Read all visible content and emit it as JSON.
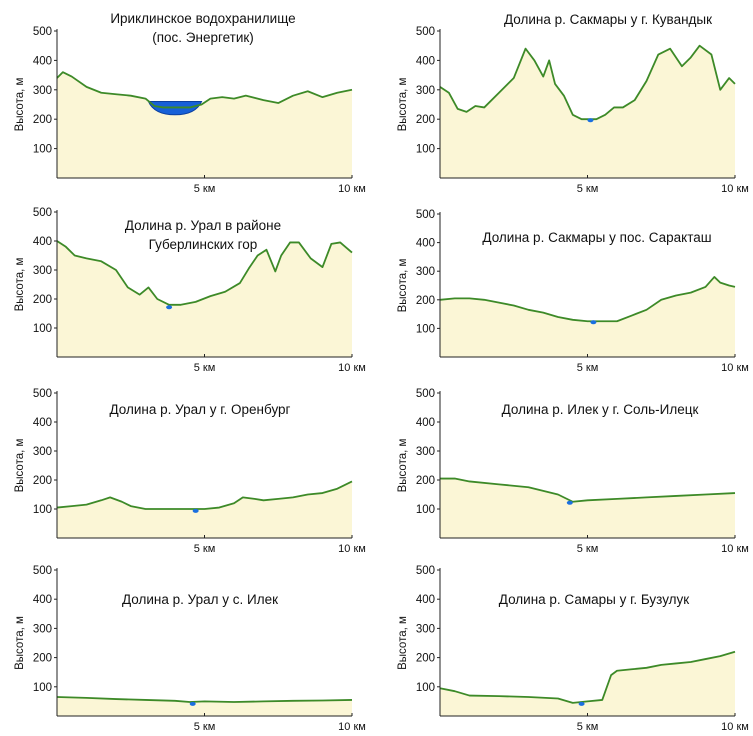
{
  "chart_data": [
    {
      "type": "area",
      "title": [
        "Ириклинское водохранилище",
        "(пос. Энергетик)"
      ],
      "ylabel": "Высота, м",
      "yticks": [
        "100",
        "200",
        "300",
        "400",
        "500"
      ],
      "xticks": [
        {
          "x": 5,
          "label": "5 км"
        },
        {
          "x": 10,
          "label": "10 км"
        }
      ],
      "xlim": [
        0,
        10
      ],
      "ylim": [
        0,
        500
      ],
      "x": [
        0,
        0.2,
        0.5,
        1,
        1.5,
        2,
        2.5,
        3,
        3.3,
        3.6,
        4,
        4.5,
        4.9,
        5.2,
        5.6,
        6,
        6.4,
        7,
        7.5,
        8,
        8.5,
        9,
        9.5,
        10
      ],
      "y": [
        340,
        360,
        345,
        310,
        290,
        285,
        280,
        270,
        245,
        240,
        240,
        240,
        250,
        270,
        275,
        270,
        280,
        265,
        255,
        280,
        295,
        275,
        290,
        300
      ],
      "water": {
        "x": [
          3.1,
          4.9
        ],
        "level": 260,
        "depth": 215
      }
    },
    {
      "type": "area",
      "title": [
        "Долина р. Сакмары у г. Кувандык"
      ],
      "ylabel": "Высота, м",
      "yticks": [
        "100",
        "200",
        "300",
        "400",
        "500"
      ],
      "xticks": [
        {
          "x": 5,
          "label": "5 км"
        },
        {
          "x": 10,
          "label": "10 км"
        }
      ],
      "xlim": [
        0,
        10
      ],
      "ylim": [
        0,
        500
      ],
      "x": [
        0,
        0.3,
        0.6,
        0.9,
        1.2,
        1.5,
        2,
        2.5,
        2.9,
        3.2,
        3.5,
        3.7,
        3.9,
        4.2,
        4.5,
        4.8,
        5,
        5.3,
        5.6,
        5.9,
        6.2,
        6.6,
        7,
        7.4,
        7.8,
        8.2,
        8.5,
        8.8,
        9.2,
        9.5,
        9.8,
        10
      ],
      "y": [
        310,
        290,
        235,
        225,
        245,
        240,
        290,
        340,
        440,
        400,
        345,
        400,
        320,
        280,
        215,
        200,
        200,
        200,
        215,
        240,
        240,
        265,
        330,
        420,
        440,
        380,
        410,
        450,
        420,
        300,
        340,
        320
      ],
      "marker": {
        "x": 5.1,
        "y": 200
      }
    },
    {
      "type": "area",
      "title": [
        "Долина р. Урал в районе",
        "Губерлинских гор"
      ],
      "ylabel": "Высота, м",
      "yticks": [
        "100",
        "200",
        "300",
        "400",
        "500"
      ],
      "xticks": [
        {
          "x": 5,
          "label": "5 км"
        },
        {
          "x": 10,
          "label": "10 км"
        }
      ],
      "xlim": [
        0,
        10
      ],
      "ylim": [
        0,
        500
      ],
      "x": [
        0,
        0.3,
        0.6,
        1,
        1.5,
        2,
        2.4,
        2.8,
        3.1,
        3.4,
        3.8,
        4.2,
        4.7,
        5.2,
        5.7,
        6.2,
        6.5,
        6.8,
        7.1,
        7.4,
        7.6,
        7.9,
        8.2,
        8.6,
        9,
        9.3,
        9.6,
        10
      ],
      "y": [
        400,
        380,
        350,
        340,
        330,
        300,
        240,
        215,
        240,
        200,
        180,
        180,
        190,
        210,
        225,
        255,
        305,
        350,
        370,
        295,
        350,
        395,
        395,
        340,
        310,
        390,
        395,
        360
      ],
      "marker": {
        "x": 3.8,
        "y": 175
      }
    },
    {
      "type": "area",
      "title": [
        "Долина р. Сакмары у пос. Саракташ"
      ],
      "ylabel": "Высота, м",
      "yticks": [
        "100",
        "200",
        "300",
        "400",
        "500"
      ],
      "xticks": [
        {
          "x": 5,
          "label": "5 км"
        },
        {
          "x": 10,
          "label": "10 км"
        }
      ],
      "xlim": [
        0,
        10
      ],
      "ylim": [
        0,
        500
      ],
      "x": [
        0,
        0.5,
        1,
        1.5,
        2,
        2.5,
        3,
        3.5,
        4,
        4.5,
        5,
        5.5,
        6,
        6.5,
        7,
        7.5,
        8,
        8.5,
        9,
        9.3,
        9.5,
        9.8,
        10
      ],
      "y": [
        200,
        205,
        205,
        200,
        190,
        180,
        165,
        155,
        140,
        130,
        125,
        125,
        125,
        145,
        165,
        200,
        215,
        225,
        245,
        280,
        260,
        250,
        245
      ],
      "marker": {
        "x": 5.2,
        "y": 125
      }
    },
    {
      "type": "area",
      "title": [
        "Долина р. Урал у г. Оренбург"
      ],
      "ylabel": "Высота, м",
      "yticks": [
        "100",
        "200",
        "300",
        "400",
        "500"
      ],
      "xticks": [
        {
          "x": 5,
          "label": "5 км"
        },
        {
          "x": 10,
          "label": "10 км"
        }
      ],
      "xlim": [
        0,
        10
      ],
      "ylim": [
        0,
        500
      ],
      "x": [
        0,
        0.5,
        1,
        1.5,
        1.8,
        2.2,
        2.5,
        3,
        3.5,
        4,
        4.5,
        5,
        5.5,
        6,
        6.3,
        6.7,
        7,
        7.5,
        8,
        8.5,
        9,
        9.5,
        10
      ],
      "y": [
        105,
        110,
        115,
        130,
        140,
        125,
        110,
        100,
        100,
        100,
        100,
        100,
        105,
        120,
        140,
        135,
        130,
        135,
        140,
        150,
        155,
        170,
        195
      ],
      "marker": {
        "x": 4.7,
        "y": 97
      }
    },
    {
      "type": "area",
      "title": [
        "Долина р. Илек у  г. Соль-Илецк"
      ],
      "ylabel": "Высота, м",
      "yticks": [
        "100",
        "200",
        "300",
        "400",
        "500"
      ],
      "xticks": [
        {
          "x": 5,
          "label": "5 км"
        },
        {
          "x": 10,
          "label": "10 км"
        }
      ],
      "xlim": [
        0,
        10
      ],
      "ylim": [
        0,
        500
      ],
      "x": [
        0,
        0.5,
        1,
        2,
        3,
        4,
        4.5,
        5,
        6,
        7,
        8,
        9,
        10
      ],
      "y": [
        205,
        205,
        195,
        185,
        175,
        150,
        125,
        130,
        135,
        140,
        145,
        150,
        155
      ],
      "marker": {
        "x": 4.4,
        "y": 125
      }
    },
    {
      "type": "area",
      "title": [
        "Долина р. Урал у с. Илек"
      ],
      "ylabel": "Высота, м",
      "yticks": [
        "100",
        "200",
        "300",
        "400",
        "500"
      ],
      "xticks": [
        {
          "x": 5,
          "label": "5 км"
        },
        {
          "x": 10,
          "label": "10 км"
        }
      ],
      "xlim": [
        0,
        10
      ],
      "ylim": [
        0,
        500
      ],
      "x": [
        0,
        1,
        2,
        3,
        4,
        4.5,
        5,
        6,
        7,
        8,
        9,
        10
      ],
      "y": [
        65,
        62,
        58,
        55,
        52,
        48,
        50,
        48,
        50,
        52,
        53,
        55
      ],
      "marker": {
        "x": 4.6,
        "y": 45
      }
    },
    {
      "type": "area",
      "title": [
        "Долина р. Самары у г. Бузулук"
      ],
      "ylabel": "Высота, м",
      "yticks": [
        "100",
        "200",
        "300",
        "400",
        "500"
      ],
      "xticks": [
        {
          "x": 5,
          "label": "5 км"
        },
        {
          "x": 10,
          "label": "10 км"
        }
      ],
      "xlim": [
        0,
        10
      ],
      "ylim": [
        0,
        500
      ],
      "x": [
        0,
        0.5,
        1,
        2,
        3,
        4,
        4.5,
        5,
        5.5,
        5.8,
        6,
        6.5,
        7,
        7.5,
        8,
        8.5,
        9,
        9.5,
        10
      ],
      "y": [
        95,
        85,
        70,
        68,
        65,
        60,
        45,
        50,
        55,
        140,
        155,
        160,
        165,
        175,
        180,
        185,
        195,
        205,
        220
      ],
      "marker": {
        "x": 4.8,
        "y": 45
      }
    }
  ]
}
